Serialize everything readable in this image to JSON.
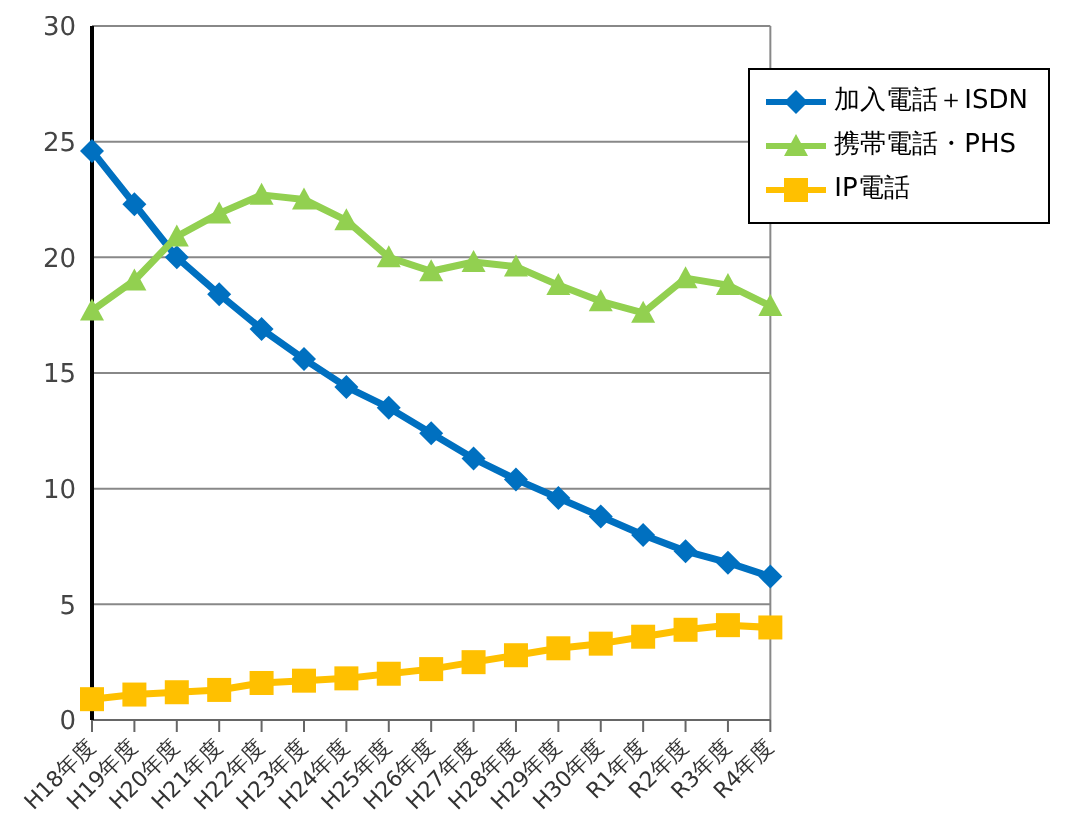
{
  "chart_data": {
    "type": "line",
    "categories": [
      "H18年度",
      "H19年度",
      "H20年度",
      "H21年度",
      "H22年度",
      "H23年度",
      "H24年度",
      "H25年度",
      "H26年度",
      "H27年度",
      "H28年度",
      "H29年度",
      "H30年度",
      "R1年度",
      "R2年度",
      "R3年度",
      "R4年度"
    ],
    "series": [
      {
        "name": "加入電話＋ISDN",
        "color": "#0070c0",
        "marker": "diamond",
        "values": [
          24.6,
          22.3,
          20.0,
          18.4,
          16.9,
          15.6,
          14.4,
          13.5,
          12.4,
          11.3,
          10.4,
          9.6,
          8.8,
          8.0,
          7.3,
          6.8,
          6.2
        ]
      },
      {
        "name": "携帯電話・PHS",
        "color": "#92d050",
        "marker": "triangle",
        "values": [
          17.7,
          19.0,
          20.9,
          21.9,
          22.7,
          22.5,
          21.6,
          20.0,
          19.4,
          19.8,
          19.6,
          18.8,
          18.1,
          17.6,
          19.1,
          18.8,
          17.9
        ]
      },
      {
        "name": "IP電話",
        "color": "#ffc000",
        "marker": "square",
        "values": [
          0.9,
          1.1,
          1.2,
          1.3,
          1.6,
          1.7,
          1.8,
          2.0,
          2.2,
          2.5,
          2.8,
          3.1,
          3.3,
          3.6,
          3.9,
          4.1,
          4.0
        ]
      }
    ],
    "ylim": [
      0,
      30
    ],
    "yticks": [
      0,
      5,
      10,
      15,
      20,
      25,
      30
    ],
    "grid": "y",
    "legend": "top right",
    "line_style": "solid"
  }
}
